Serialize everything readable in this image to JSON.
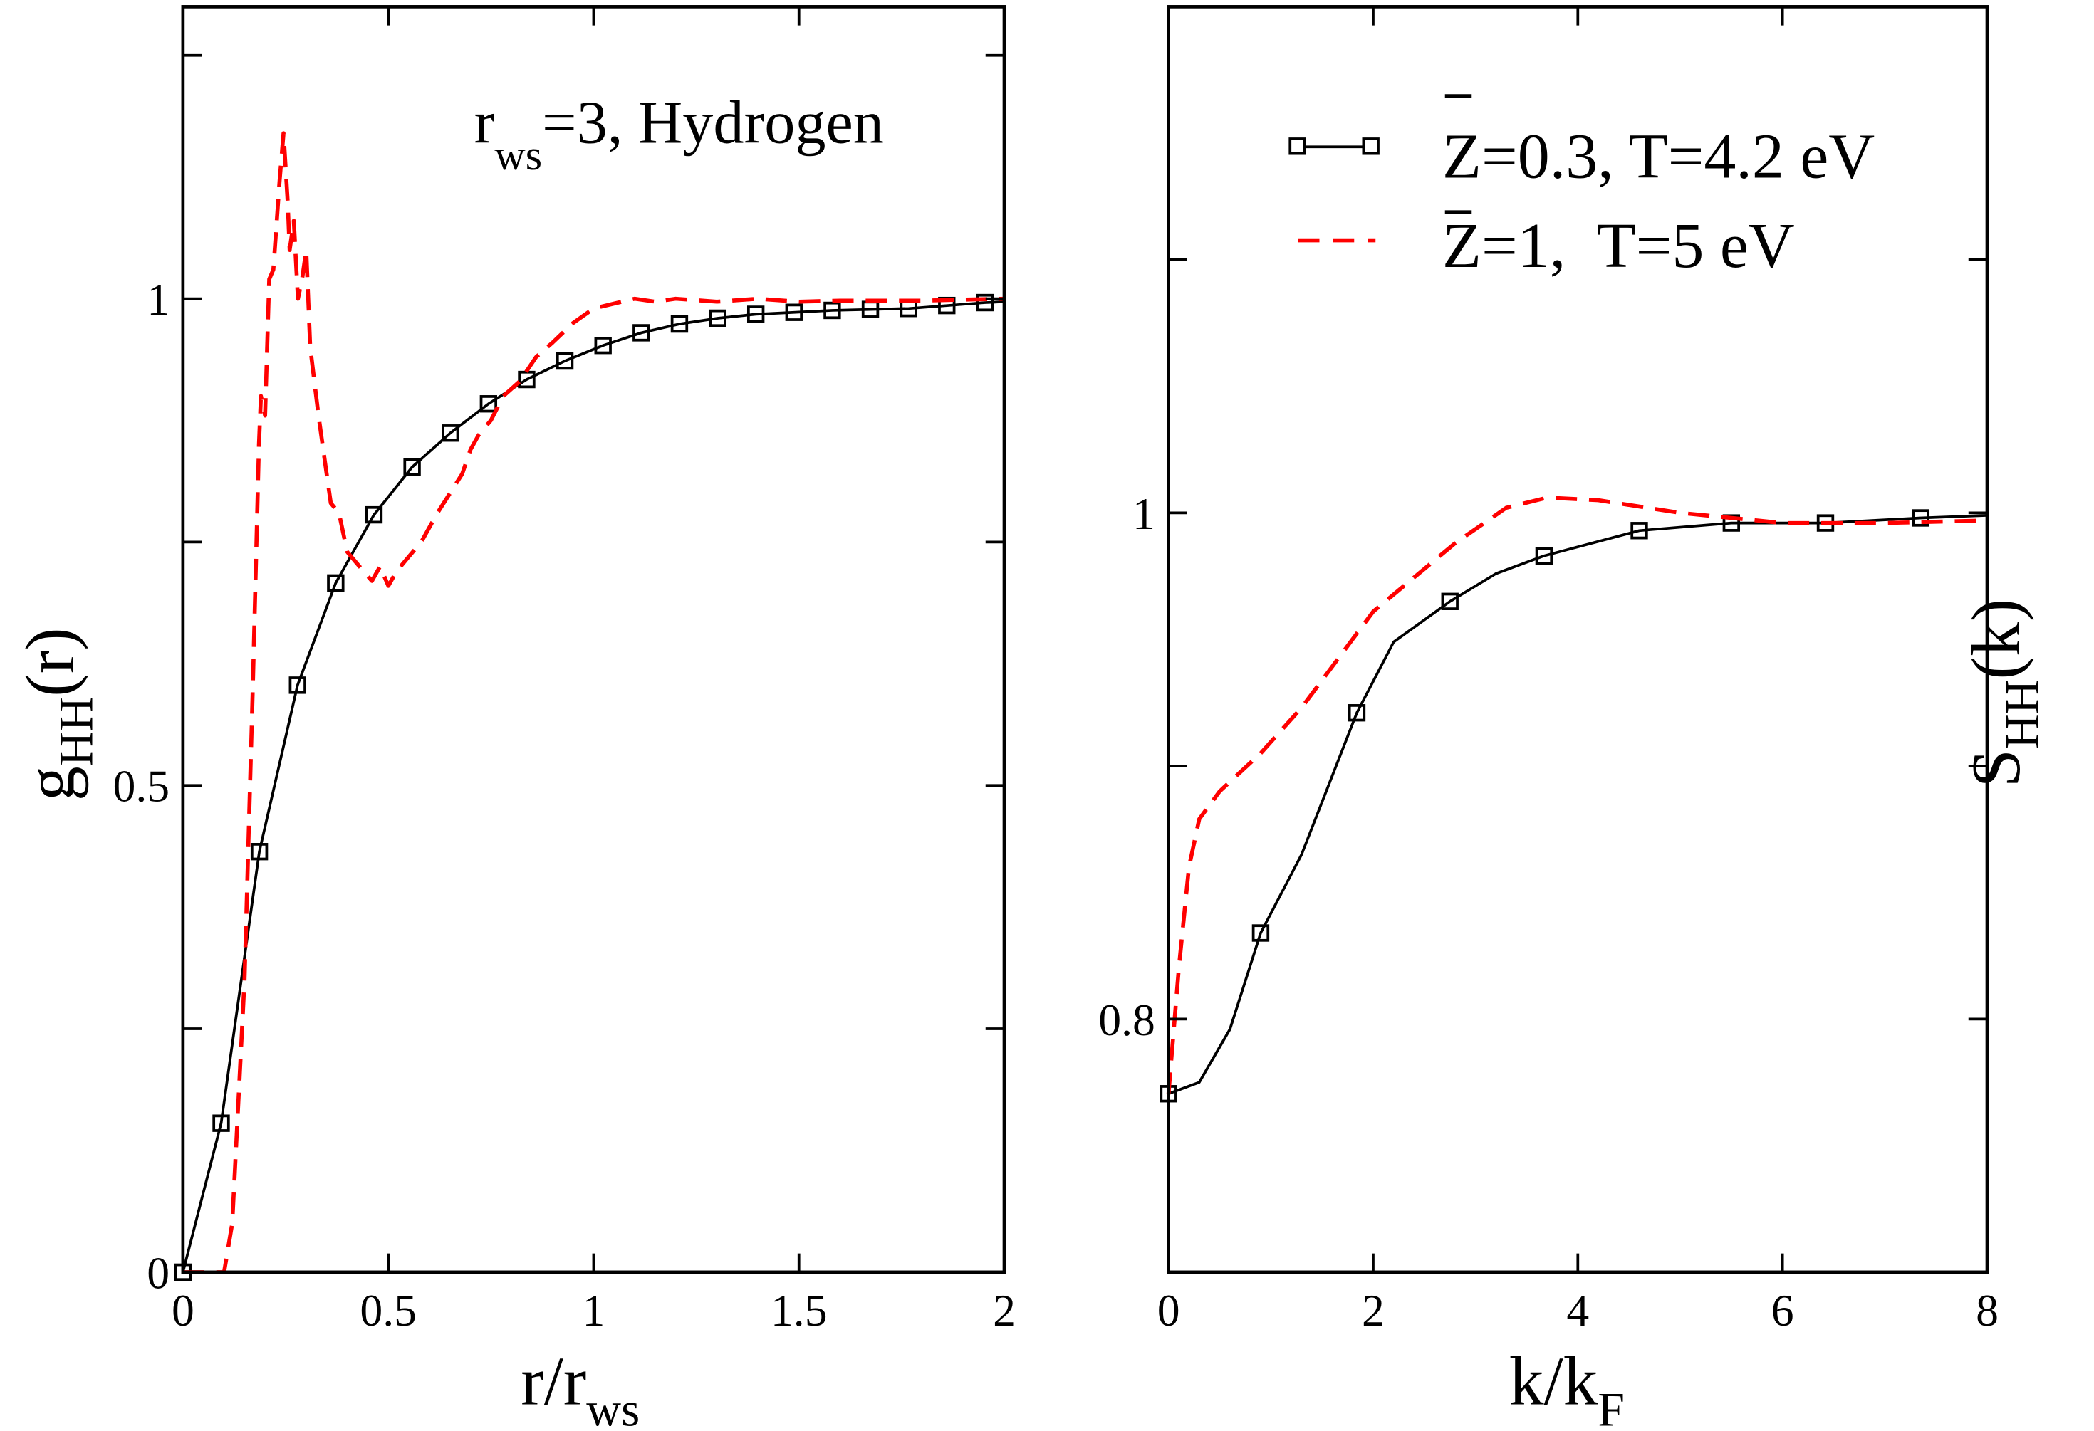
{
  "colors": {
    "series1": "#000000",
    "series2": "#ff0000"
  },
  "chart_data": [
    {
      "type": "line",
      "panel": "left",
      "xlabel": {
        "main": "r/r",
        "sub": "ws"
      },
      "ylabel": {
        "main": "g",
        "sub": "HH",
        "suffix": "(r)"
      },
      "annotation": {
        "main": "r",
        "sub": "ws",
        "rest": "=3, Hydrogen"
      },
      "xlim": [
        0,
        2
      ],
      "ylim": [
        0,
        1.3
      ],
      "xticks": [
        0,
        0.5,
        1,
        1.5,
        2
      ],
      "xtick_labels": [
        "0",
        "0.5",
        "1",
        "1.5",
        "2"
      ],
      "yticks": [
        0,
        0.5,
        1
      ],
      "ytick_labels": [
        "0",
        "0.5",
        "1"
      ],
      "yminor": [
        0.25,
        0.75,
        1.25
      ],
      "series": [
        {
          "name": "Z=0.3, T=4.2 eV",
          "style": "solid-squares",
          "x": [
            0,
            0.093,
            0.186,
            0.279,
            0.372,
            0.465,
            0.558,
            0.651,
            0.744,
            0.837,
            0.93,
            1.023,
            1.116,
            1.209,
            1.302,
            1.395,
            1.488,
            1.581,
            1.674,
            1.767,
            1.86,
            1.953,
            2.0
          ],
          "y": [
            0,
            0.153,
            0.432,
            0.603,
            0.708,
            0.778,
            0.827,
            0.862,
            0.892,
            0.917,
            0.936,
            0.952,
            0.965,
            0.974,
            0.98,
            0.984,
            0.986,
            0.988,
            0.989,
            0.99,
            0.993,
            0.996,
            0.997
          ],
          "markers": 22
        },
        {
          "name": "Z=1, T=5 eV",
          "style": "dashed",
          "x": [
            0,
            0.1,
            0.12,
            0.15,
            0.17,
            0.185,
            0.19,
            0.2,
            0.21,
            0.22,
            0.235,
            0.245,
            0.255,
            0.26,
            0.27,
            0.28,
            0.29,
            0.3,
            0.31,
            0.33,
            0.35,
            0.36,
            0.38,
            0.4,
            0.42,
            0.44,
            0.46,
            0.48,
            0.5,
            0.52,
            0.55,
            0.58,
            0.62,
            0.65,
            0.68,
            0.7,
            0.72,
            0.75,
            0.78,
            0.82,
            0.86,
            0.9,
            0.95,
            1.0,
            1.05,
            1.1,
            1.15,
            1.2,
            1.3,
            1.4,
            1.5,
            1.6,
            1.8,
            2.0
          ],
          "y": [
            0,
            0,
            0.05,
            0.3,
            0.6,
            0.85,
            0.9,
            0.88,
            1.02,
            1.03,
            1.12,
            1.17,
            1.1,
            1.05,
            1.08,
            1.0,
            1.02,
            1.05,
            0.95,
            0.88,
            0.82,
            0.79,
            0.78,
            0.74,
            0.73,
            0.72,
            0.71,
            0.725,
            0.705,
            0.72,
            0.735,
            0.75,
            0.78,
            0.8,
            0.82,
            0.845,
            0.86,
            0.875,
            0.9,
            0.915,
            0.94,
            0.955,
            0.975,
            0.99,
            0.995,
            1.0,
            0.997,
            1.0,
            0.997,
            1.0,
            0.997,
            0.998,
            0.998,
            1.0
          ]
        }
      ]
    },
    {
      "type": "line",
      "panel": "right",
      "xlabel": {
        "main": "k/k",
        "sub": "F"
      },
      "ylabel": {
        "main": "S",
        "sub": "HH",
        "suffix": "(k)"
      },
      "xlim": [
        0,
        8
      ],
      "ylim": [
        0.7,
        1.2
      ],
      "xticks": [
        0,
        2,
        4,
        6,
        8
      ],
      "xtick_labels": [
        "0",
        "2",
        "4",
        "6",
        "8"
      ],
      "yticks": [
        0.8,
        1.0
      ],
      "ytick_labels": [
        "0.8",
        "1"
      ],
      "yminor": [
        0.9,
        1.1
      ],
      "legend": {
        "placement": "top-right",
        "entries": [
          "Z=0.3, T=4.2 eV",
          "Z=1,  T=5 eV"
        ]
      },
      "series": [
        {
          "name": "Z=0.3, T=4.2 eV",
          "style": "solid-squares",
          "x": [
            0,
            0.3,
            0.6,
            0.9,
            1.3,
            1.84,
            2.2,
            2.75,
            3.2,
            3.67,
            4.6,
            5.5,
            6.42,
            7.35,
            8.0
          ],
          "y": [
            0.7705,
            0.775,
            0.796,
            0.834,
            0.865,
            0.921,
            0.949,
            0.965,
            0.976,
            0.983,
            0.993,
            0.996,
            0.996,
            0.998,
            0.999
          ],
          "marker_x": [
            0,
            0.9,
            1.84,
            2.75,
            3.67,
            4.6,
            5.5,
            6.42,
            7.35
          ],
          "marker_y": [
            0.7705,
            0.834,
            0.921,
            0.965,
            0.983,
            0.993,
            0.996,
            0.996,
            0.998
          ]
        },
        {
          "name": "Z=1, T=5 eV",
          "style": "dashed",
          "x": [
            0,
            0.1,
            0.2,
            0.3,
            0.5,
            0.9,
            1.3,
            2.0,
            2.8,
            3.3,
            3.7,
            4.2,
            5.0,
            6.0,
            7.0,
            8.0
          ],
          "y": [
            0.7705,
            0.82,
            0.86,
            0.879,
            0.89,
            0.905,
            0.923,
            0.961,
            0.988,
            1.002,
            1.006,
            1.005,
            1.0,
            0.996,
            0.996,
            0.997
          ]
        }
      ]
    }
  ]
}
